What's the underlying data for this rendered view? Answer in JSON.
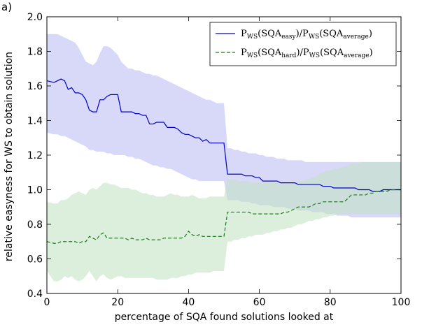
{
  "panel_label": "a)",
  "chart_data": {
    "type": "line",
    "xlabel": "percentage of SQA found solutions looked at",
    "ylabel": "relative easyness for WS to obtain solution",
    "xlim": [
      0,
      100
    ],
    "ylim": [
      0.4,
      2.0
    ],
    "xticks": [
      "0",
      "20",
      "40",
      "60",
      "80",
      "100"
    ],
    "yticks": [
      "0.4",
      "0.6",
      "0.8",
      "1.0",
      "1.2",
      "1.4",
      "1.6",
      "1.8",
      "2.0"
    ],
    "grid": false,
    "legend_position": "top-right",
    "series": [
      {
        "name": "P_WS(SQA_easy)/P_WS(SQA_average)",
        "color": "#0000cc",
        "linestyle": "solid",
        "band_color": "#b8b8f2",
        "x": [
          0,
          2,
          3,
          4,
          5,
          6,
          7,
          8,
          9,
          10,
          11,
          12,
          13,
          14,
          15,
          16,
          17,
          18,
          19,
          20,
          21,
          22,
          23,
          24,
          25,
          26,
          27,
          28,
          29,
          30,
          31,
          32,
          33,
          34,
          35,
          36,
          37,
          38,
          39,
          40,
          41,
          42,
          43,
          44,
          45,
          46,
          47,
          48,
          49,
          50,
          51,
          52,
          53,
          54,
          55,
          56,
          57,
          58,
          59,
          60,
          61,
          62,
          63,
          64,
          65,
          66,
          67,
          68,
          69,
          70,
          71,
          72,
          73,
          74,
          75,
          76,
          77,
          78,
          79,
          80,
          81,
          82,
          83,
          84,
          85,
          86,
          87,
          88,
          89,
          90,
          91,
          92,
          93,
          94,
          95,
          96,
          97,
          98,
          99,
          100
        ],
        "y": [
          1.63,
          1.62,
          1.63,
          1.64,
          1.63,
          1.58,
          1.59,
          1.56,
          1.56,
          1.55,
          1.52,
          1.46,
          1.45,
          1.45,
          1.52,
          1.52,
          1.54,
          1.55,
          1.55,
          1.55,
          1.45,
          1.45,
          1.45,
          1.45,
          1.44,
          1.44,
          1.43,
          1.43,
          1.38,
          1.38,
          1.39,
          1.39,
          1.39,
          1.36,
          1.36,
          1.36,
          1.35,
          1.33,
          1.32,
          1.32,
          1.31,
          1.3,
          1.3,
          1.28,
          1.29,
          1.27,
          1.27,
          1.27,
          1.27,
          1.27,
          1.09,
          1.09,
          1.09,
          1.09,
          1.09,
          1.08,
          1.08,
          1.08,
          1.07,
          1.07,
          1.05,
          1.05,
          1.05,
          1.05,
          1.05,
          1.04,
          1.04,
          1.04,
          1.04,
          1.04,
          1.03,
          1.03,
          1.03,
          1.03,
          1.03,
          1.03,
          1.03,
          1.02,
          1.02,
          1.02,
          1.01,
          1.01,
          1.01,
          1.01,
          1.01,
          1.01,
          1.01,
          1.0,
          1.0,
          1.0,
          1.0,
          0.99,
          0.99,
          0.99,
          1.0,
          1.0,
          1.0,
          1.0,
          1.0,
          1.0
        ],
        "band_upper": [
          1.9,
          1.9,
          1.9,
          1.89,
          1.88,
          1.87,
          1.86,
          1.85,
          1.82,
          1.78,
          1.74,
          1.73,
          1.72,
          1.74,
          1.79,
          1.83,
          1.83,
          1.82,
          1.8,
          1.78,
          1.74,
          1.72,
          1.7,
          1.7,
          1.69,
          1.69,
          1.68,
          1.67,
          1.67,
          1.66,
          1.66,
          1.65,
          1.64,
          1.63,
          1.62,
          1.61,
          1.6,
          1.59,
          1.58,
          1.57,
          1.56,
          1.55,
          1.54,
          1.53,
          1.52,
          1.52,
          1.51,
          1.5,
          1.5,
          1.5,
          1.24,
          1.24,
          1.23,
          1.23,
          1.22,
          1.22,
          1.21,
          1.21,
          1.21,
          1.2,
          1.2,
          1.19,
          1.19,
          1.19,
          1.18,
          1.18,
          1.18,
          1.17,
          1.17,
          1.17,
          1.17,
          1.17,
          1.16,
          1.16,
          1.16,
          1.16,
          1.16,
          1.16,
          1.16,
          1.16,
          1.16,
          1.16,
          1.16,
          1.16,
          1.16,
          1.16,
          1.16,
          1.16,
          1.16,
          1.16,
          1.16,
          1.16,
          1.16,
          1.16,
          1.16,
          1.16,
          1.16,
          1.16,
          1.16,
          1.16
        ],
        "band_lower": [
          1.33,
          1.32,
          1.32,
          1.31,
          1.31,
          1.3,
          1.29,
          1.28,
          1.27,
          1.26,
          1.25,
          1.23,
          1.23,
          1.22,
          1.22,
          1.22,
          1.21,
          1.21,
          1.2,
          1.2,
          1.2,
          1.2,
          1.19,
          1.19,
          1.18,
          1.18,
          1.17,
          1.16,
          1.15,
          1.14,
          1.14,
          1.13,
          1.13,
          1.12,
          1.12,
          1.11,
          1.1,
          1.09,
          1.08,
          1.07,
          1.06,
          1.06,
          1.05,
          1.05,
          1.05,
          1.05,
          1.05,
          1.05,
          1.05,
          1.05,
          0.94,
          0.94,
          0.94,
          0.94,
          0.93,
          0.93,
          0.93,
          0.92,
          0.92,
          0.91,
          0.91,
          0.91,
          0.91,
          0.9,
          0.9,
          0.9,
          0.9,
          0.89,
          0.89,
          0.89,
          0.88,
          0.88,
          0.88,
          0.88,
          0.87,
          0.87,
          0.87,
          0.87,
          0.86,
          0.86,
          0.86,
          0.85,
          0.85,
          0.85,
          0.85,
          0.84,
          0.84,
          0.84,
          0.84,
          0.84,
          0.84,
          0.84,
          0.84,
          0.84,
          0.84,
          0.84,
          0.84,
          0.84,
          0.84,
          0.84
        ]
      },
      {
        "name": "P_WS(SQA_hard)/P_WS(SQA_average)",
        "color": "#1a7a1a",
        "linestyle": "dashed",
        "band_color": "#c4e3c4",
        "x": [
          0,
          2,
          3,
          4,
          5,
          6,
          7,
          8,
          9,
          10,
          11,
          12,
          13,
          14,
          15,
          16,
          17,
          18,
          19,
          20,
          21,
          22,
          23,
          24,
          25,
          26,
          27,
          28,
          29,
          30,
          31,
          32,
          33,
          34,
          35,
          36,
          37,
          38,
          39,
          40,
          41,
          42,
          43,
          44,
          45,
          46,
          47,
          48,
          49,
          50,
          51,
          52,
          53,
          54,
          55,
          56,
          57,
          58,
          59,
          60,
          61,
          62,
          63,
          64,
          65,
          66,
          67,
          68,
          69,
          70,
          71,
          72,
          73,
          74,
          75,
          76,
          77,
          78,
          79,
          80,
          81,
          82,
          83,
          84,
          85,
          86,
          87,
          88,
          89,
          90,
          91,
          92,
          93,
          94,
          95,
          96,
          97,
          98,
          99,
          100
        ],
        "y": [
          0.7,
          0.69,
          0.69,
          0.7,
          0.7,
          0.7,
          0.7,
          0.7,
          0.69,
          0.7,
          0.7,
          0.73,
          0.72,
          0.71,
          0.74,
          0.75,
          0.72,
          0.72,
          0.72,
          0.72,
          0.72,
          0.72,
          0.71,
          0.72,
          0.71,
          0.71,
          0.71,
          0.72,
          0.71,
          0.71,
          0.71,
          0.71,
          0.72,
          0.72,
          0.72,
          0.72,
          0.72,
          0.72,
          0.73,
          0.76,
          0.74,
          0.73,
          0.74,
          0.73,
          0.73,
          0.73,
          0.73,
          0.73,
          0.73,
          0.73,
          0.87,
          0.87,
          0.87,
          0.87,
          0.87,
          0.87,
          0.87,
          0.86,
          0.86,
          0.86,
          0.86,
          0.86,
          0.86,
          0.86,
          0.86,
          0.86,
          0.87,
          0.87,
          0.88,
          0.89,
          0.9,
          0.9,
          0.9,
          0.9,
          0.91,
          0.92,
          0.92,
          0.93,
          0.93,
          0.93,
          0.93,
          0.93,
          0.93,
          0.93,
          0.95,
          0.97,
          0.97,
          0.97,
          0.97,
          0.97,
          0.98,
          0.98,
          0.99,
          0.99,
          0.99,
          0.99,
          1.0,
          1.0,
          1.0,
          1.0
        ],
        "band_upper": [
          0.93,
          0.92,
          0.92,
          0.94,
          0.94,
          0.95,
          0.97,
          0.98,
          0.99,
          0.98,
          0.97,
          1.0,
          1.01,
          1.0,
          1.02,
          1.04,
          1.04,
          1.03,
          1.03,
          1.02,
          1.01,
          1.01,
          1.01,
          1.0,
          1.0,
          0.99,
          0.98,
          0.98,
          0.97,
          0.97,
          0.96,
          0.96,
          0.96,
          0.97,
          0.98,
          0.97,
          0.97,
          0.96,
          0.96,
          0.96,
          0.97,
          0.96,
          0.95,
          0.95,
          0.95,
          0.96,
          0.96,
          0.96,
          0.96,
          0.96,
          1.06,
          1.06,
          1.06,
          1.05,
          1.05,
          1.05,
          1.05,
          1.04,
          1.04,
          1.04,
          1.04,
          1.04,
          1.04,
          1.04,
          1.04,
          1.04,
          1.04,
          1.04,
          1.04,
          1.04,
          1.05,
          1.05,
          1.06,
          1.06,
          1.07,
          1.08,
          1.09,
          1.1,
          1.11,
          1.11,
          1.12,
          1.12,
          1.13,
          1.13,
          1.14,
          1.15,
          1.15,
          1.15,
          1.16,
          1.16,
          1.16,
          1.16,
          1.16,
          1.16,
          1.16,
          1.16,
          1.16,
          1.16,
          1.16,
          1.16
        ],
        "band_lower": [
          0.53,
          0.47,
          0.47,
          0.48,
          0.5,
          0.49,
          0.5,
          0.48,
          0.47,
          0.48,
          0.5,
          0.53,
          0.5,
          0.47,
          0.5,
          0.51,
          0.49,
          0.48,
          0.49,
          0.5,
          0.5,
          0.49,
          0.49,
          0.49,
          0.49,
          0.49,
          0.49,
          0.49,
          0.49,
          0.49,
          0.48,
          0.48,
          0.48,
          0.48,
          0.49,
          0.49,
          0.49,
          0.5,
          0.5,
          0.51,
          0.51,
          0.52,
          0.52,
          0.52,
          0.52,
          0.52,
          0.53,
          0.53,
          0.53,
          0.53,
          0.7,
          0.7,
          0.71,
          0.71,
          0.72,
          0.72,
          0.73,
          0.73,
          0.74,
          0.74,
          0.74,
          0.75,
          0.75,
          0.76,
          0.76,
          0.77,
          0.77,
          0.78,
          0.78,
          0.79,
          0.8,
          0.8,
          0.81,
          0.82,
          0.82,
          0.83,
          0.83,
          0.84,
          0.84,
          0.85,
          0.85,
          0.86,
          0.86,
          0.86,
          0.86,
          0.86,
          0.86,
          0.86,
          0.86,
          0.86,
          0.86,
          0.86,
          0.86,
          0.86,
          0.86,
          0.86,
          0.86,
          0.86,
          0.86,
          0.86
        ]
      }
    ]
  }
}
